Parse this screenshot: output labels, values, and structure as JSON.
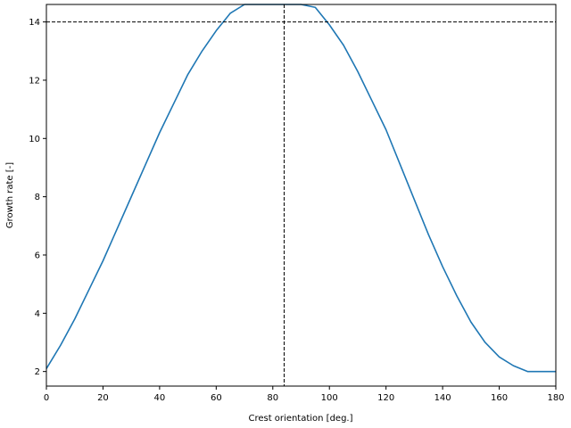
{
  "chart_data": {
    "type": "line",
    "title": "",
    "xlabel": "Crest orientation [deg.]",
    "ylabel": "Growth rate [-]",
    "xlim": [
      0,
      180
    ],
    "ylim": [
      1.5,
      14.6
    ],
    "xticks": [
      0,
      20,
      40,
      60,
      80,
      100,
      120,
      140,
      160,
      180
    ],
    "yticks": [
      2,
      4,
      6,
      8,
      10,
      12,
      14
    ],
    "grid": false,
    "legend": "none",
    "series": [
      {
        "color": "#1f77b4",
        "x": [
          0,
          5,
          10,
          15,
          20,
          25,
          30,
          35,
          40,
          45,
          50,
          55,
          60,
          65,
          70,
          75,
          80,
          84,
          90,
          95,
          100,
          105,
          110,
          115,
          120,
          125,
          130,
          135,
          140,
          145,
          150,
          155,
          160,
          165,
          170,
          175,
          180
        ],
        "y": [
          2.1,
          2.9,
          3.8,
          4.8,
          5.8,
          6.9,
          8.0,
          9.1,
          10.2,
          11.2,
          12.2,
          13.0,
          13.7,
          14.3,
          14.7,
          15.0,
          15.1,
          15.1,
          14.9,
          14.5,
          13.9,
          13.2,
          12.3,
          11.3,
          10.3,
          9.1,
          7.9,
          6.7,
          5.6,
          4.6,
          3.7,
          3.0,
          2.5,
          2.2,
          2.0,
          2.0,
          2.0
        ]
      }
    ],
    "reference_lines": {
      "color": "#000000",
      "style": "dashed",
      "vertical_x": 84,
      "horizontal_y": 14.0
    }
  }
}
